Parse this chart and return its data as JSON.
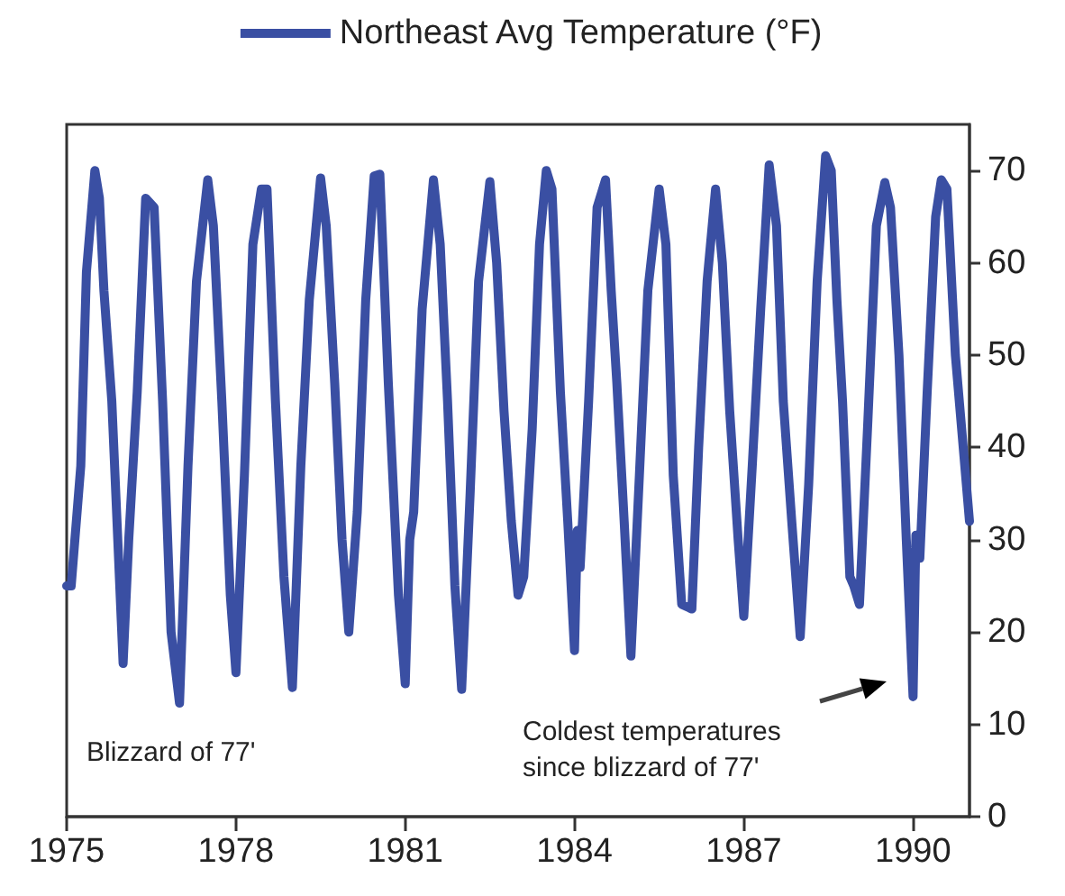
{
  "chart_data": {
    "type": "line",
    "legend": "top",
    "line_style": "solid",
    "marker": "none",
    "grid": false,
    "xlim": [
      1975,
      1991
    ],
    "xticks": [
      1975,
      1978,
      1981,
      1984,
      1987,
      1990
    ],
    "ylim": [
      0,
      75
    ],
    "yticks": [
      0,
      10,
      20,
      30,
      40,
      50,
      60,
      70
    ],
    "annotations": [
      "Blizzard of 77'",
      "Coldest temperatures\nsince blizzard of 77'"
    ],
    "series": [
      {
        "name": "Northeast Avg Temperature (°F)",
        "color": "#3a4fa3",
        "x": [
          1975.0,
          1975.08,
          1975.25,
          1975.35,
          1975.5,
          1975.58,
          1975.66,
          1975.8,
          1976.0,
          1976.1,
          1976.25,
          1976.4,
          1976.55,
          1976.7,
          1976.85,
          1977.0,
          1977.15,
          1977.3,
          1977.5,
          1977.6,
          1977.75,
          1977.9,
          1978.0,
          1978.15,
          1978.3,
          1978.45,
          1978.55,
          1978.7,
          1978.85,
          1979.0,
          1979.15,
          1979.3,
          1979.5,
          1979.6,
          1979.75,
          1979.88,
          1980.0,
          1980.15,
          1980.3,
          1980.45,
          1980.55,
          1980.7,
          1980.88,
          1981.0,
          1981.08,
          1981.15,
          1981.3,
          1981.5,
          1981.62,
          1981.75,
          1981.88,
          1982.0,
          1982.15,
          1982.3,
          1982.5,
          1982.62,
          1982.75,
          1982.88,
          1983.0,
          1983.1,
          1983.25,
          1983.38,
          1983.5,
          1983.6,
          1983.75,
          1983.88,
          1984.0,
          1984.05,
          1984.1,
          1984.25,
          1984.4,
          1984.55,
          1984.65,
          1984.75,
          1984.88,
          1985.0,
          1985.15,
          1985.3,
          1985.5,
          1985.62,
          1985.75,
          1985.9,
          1986.08,
          1986.2,
          1986.35,
          1986.5,
          1986.62,
          1986.75,
          1986.9,
          1987.0,
          1987.15,
          1987.3,
          1987.45,
          1987.58,
          1987.7,
          1987.85,
          1988.0,
          1988.15,
          1988.3,
          1988.45,
          1988.55,
          1988.65,
          1988.75,
          1988.88,
          1988.95,
          1989.05,
          1989.2,
          1989.35,
          1989.5,
          1989.6,
          1989.75,
          1989.88,
          1990.0,
          1990.05,
          1990.12,
          1990.25,
          1990.4,
          1990.5,
          1990.6,
          1990.75,
          1991.0
        ],
        "values": [
          25,
          25,
          38,
          59,
          70,
          67,
          57,
          45,
          16.6,
          30,
          46,
          67,
          66,
          45,
          20,
          12.3,
          38,
          58,
          69,
          64,
          45,
          24,
          15.6,
          37,
          62,
          68,
          68,
          45,
          26,
          14,
          38,
          56,
          69.2,
          64,
          47,
          30,
          20,
          33,
          56,
          69.4,
          69.6,
          47,
          24,
          14.4,
          30,
          33,
          55,
          69,
          62,
          45,
          25,
          13.8,
          35,
          58,
          68.8,
          60,
          44,
          32,
          24,
          26,
          42,
          62,
          70,
          68,
          46,
          32,
          18,
          31,
          27,
          45,
          66,
          69,
          57,
          47,
          32,
          17.4,
          37,
          57,
          68,
          62,
          37,
          23,
          22.5,
          40,
          58,
          68,
          60,
          44,
          30,
          21.7,
          38,
          55,
          70.6,
          64,
          45,
          32,
          19.5,
          36,
          58,
          71.6,
          70,
          56,
          45,
          26,
          25,
          23,
          43,
          64,
          68.7,
          66,
          50,
          30,
          13,
          30.5,
          28,
          46,
          65,
          69,
          68,
          50,
          32
        ]
      }
    ]
  }
}
